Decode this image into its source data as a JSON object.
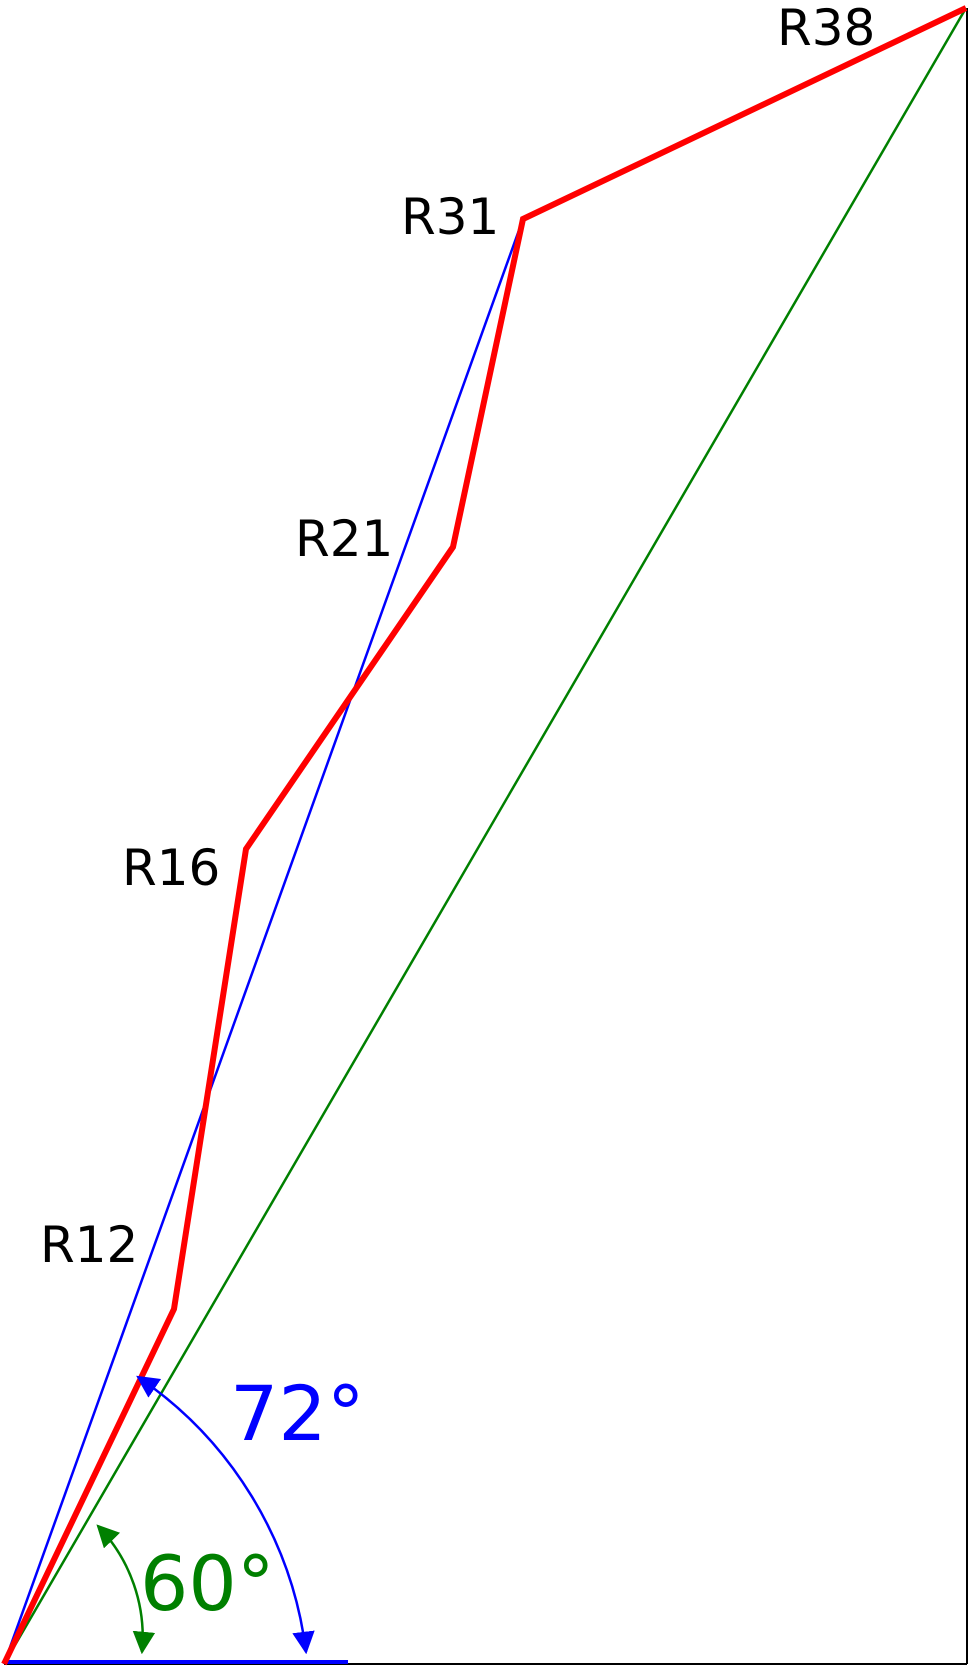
{
  "colors": {
    "path": "#ff0000",
    "steep_line": "#0000ff",
    "diagonal_line": "#008000",
    "frame": "#000000",
    "text": "#000000"
  },
  "labels": {
    "r12": "R12",
    "r16": "R16",
    "r21": "R21",
    "r31": "R31",
    "r38": "R38"
  },
  "angles": {
    "steep": "72°",
    "diagonal": "60°"
  }
}
